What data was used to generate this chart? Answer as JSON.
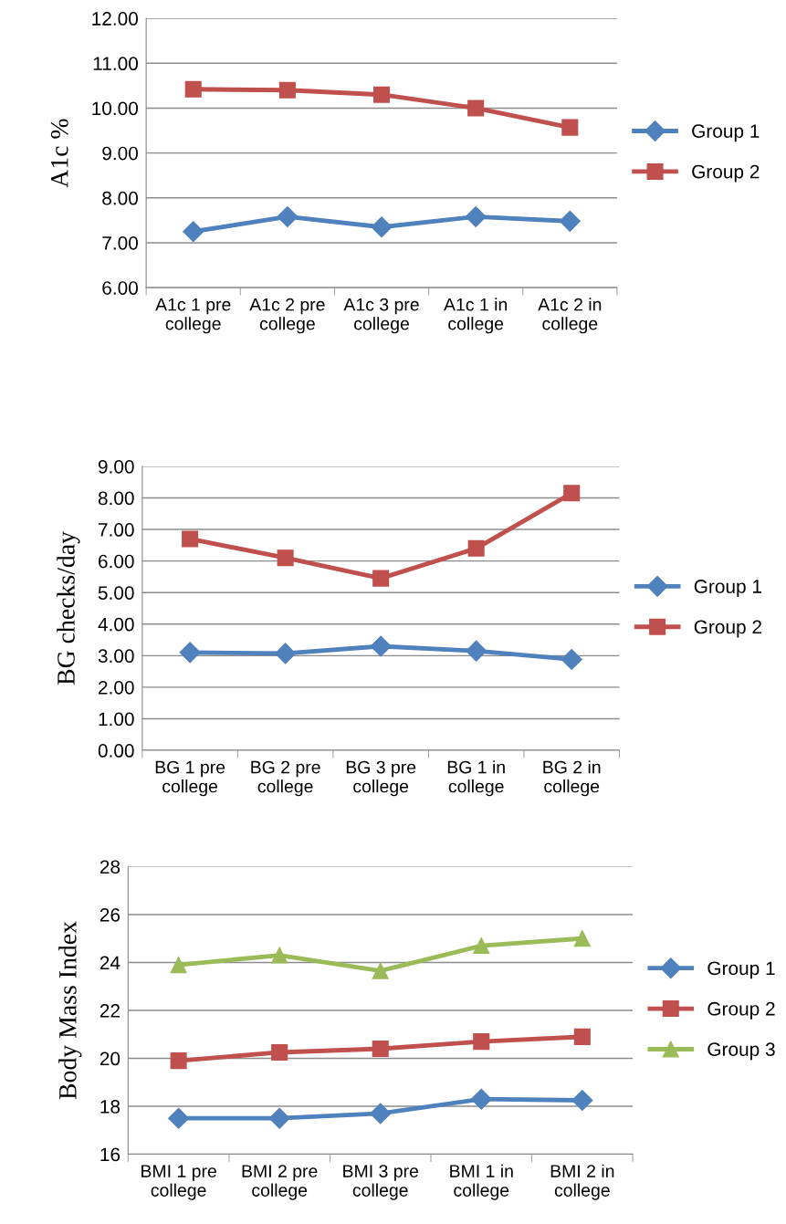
{
  "chart_data": [
    {
      "type": "line",
      "ylabel": "A1c %",
      "categories": [
        "A1c 1 pre\ncollege",
        "A1c 2 pre\ncollege",
        "A1c 3 pre\ncollege",
        "A1c 1 in\ncollege",
        "A1c 2 in\ncollege"
      ],
      "ylim": [
        6,
        12
      ],
      "yticks": [
        {
          "value": 6,
          "label": "6.00"
        },
        {
          "value": 7,
          "label": "7.00"
        },
        {
          "value": 8,
          "label": "8.00"
        },
        {
          "value": 9,
          "label": "9.00"
        },
        {
          "value": 10,
          "label": "10.00"
        },
        {
          "value": 11,
          "label": "11.00"
        },
        {
          "value": 12,
          "label": "12.00"
        }
      ],
      "grid": "y",
      "legend": "right",
      "series": [
        {
          "name": "Group 1",
          "color": "#4f81bd",
          "marker": "diamond",
          "values": [
            7.25,
            7.58,
            7.35,
            7.58,
            7.48
          ]
        },
        {
          "name": "Group 2",
          "color": "#c0504d",
          "marker": "square",
          "values": [
            10.42,
            10.4,
            10.3,
            10.0,
            9.57
          ]
        }
      ]
    },
    {
      "type": "line",
      "ylabel": "BG checks/day",
      "categories": [
        "BG 1 pre\ncollege",
        "BG 2 pre\ncollege",
        "BG 3 pre\ncollege",
        "BG 1 in\ncollege",
        "BG 2 in\ncollege"
      ],
      "ylim": [
        0,
        9
      ],
      "yticks": [
        {
          "value": 0,
          "label": "0.00"
        },
        {
          "value": 1,
          "label": "1.00"
        },
        {
          "value": 2,
          "label": "2.00"
        },
        {
          "value": 3,
          "label": "3.00"
        },
        {
          "value": 4,
          "label": "4.00"
        },
        {
          "value": 5,
          "label": "5.00"
        },
        {
          "value": 6,
          "label": "6.00"
        },
        {
          "value": 7,
          "label": "7.00"
        },
        {
          "value": 8,
          "label": "8.00"
        },
        {
          "value": 9,
          "label": "9.00"
        }
      ],
      "grid": "y",
      "legend": "right",
      "series": [
        {
          "name": "Group 1",
          "color": "#4f81bd",
          "marker": "diamond",
          "values": [
            3.1,
            3.07,
            3.3,
            3.15,
            2.88
          ]
        },
        {
          "name": "Group 2",
          "color": "#c0504d",
          "marker": "square",
          "values": [
            6.7,
            6.1,
            5.45,
            6.4,
            8.15
          ]
        }
      ]
    },
    {
      "type": "line",
      "ylabel": "Body Mass Index",
      "categories": [
        "BMI 1 pre\ncollege",
        "BMI 2 pre\ncollege",
        "BMI 3 pre\ncollege",
        "BMI 1 in\ncollege",
        "BMI 2 in\ncollege"
      ],
      "ylim": [
        16,
        28
      ],
      "yticks": [
        16,
        18,
        20,
        22,
        24,
        26,
        28
      ],
      "grid": "y",
      "legend": "right",
      "series": [
        {
          "name": "Group 1",
          "color": "#4f81bd",
          "marker": "diamond",
          "values": [
            17.5,
            17.5,
            17.7,
            18.3,
            18.25
          ]
        },
        {
          "name": "Group 2",
          "color": "#c0504d",
          "marker": "square",
          "values": [
            19.9,
            20.25,
            20.4,
            20.7,
            20.9
          ]
        },
        {
          "name": "Group 3",
          "color": "#9bbb59",
          "marker": "triangle",
          "values": [
            23.9,
            24.3,
            23.65,
            24.7,
            25.0
          ]
        }
      ]
    }
  ]
}
